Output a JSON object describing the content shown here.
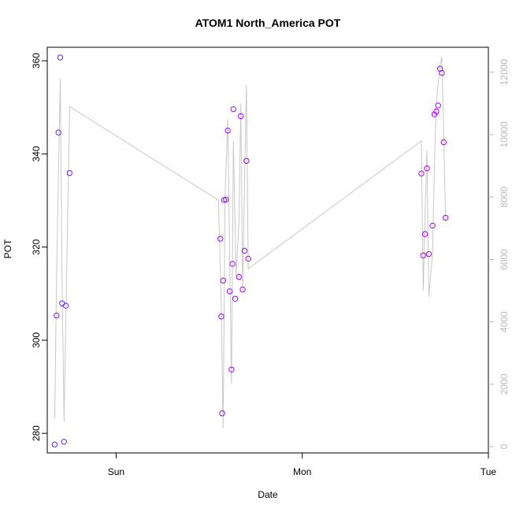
{
  "chart_data": {
    "type": "scatter",
    "title": "ATOM1 North_America POT",
    "xlabel": "Date",
    "ylabel": "POT",
    "x_ticks": [
      "Sun",
      "Mon",
      "Tue"
    ],
    "xlim": [
      -0.37,
      2.0
    ],
    "ylim": [
      275.8,
      362.9
    ],
    "y_ticks": [
      280,
      300,
      320,
      340,
      360
    ],
    "secondary_axis": {
      "ticks": [
        0,
        2000,
        4000,
        6000,
        8000,
        10000,
        12000
      ],
      "ylim": [
        -200,
        12800
      ],
      "color": "#b8b8b8"
    },
    "grid": false,
    "series": [
      {
        "kind": "points",
        "colors": [
          "#6a22ee",
          "#b100ff"
        ],
        "points": [
          {
            "x": -0.33,
            "y": 277.6
          },
          {
            "x": -0.32,
            "y": 305.3
          },
          {
            "x": -0.31,
            "y": 344.6
          },
          {
            "x": -0.3,
            "y": 360.7
          },
          {
            "x": -0.29,
            "y": 307.9
          },
          {
            "x": -0.28,
            "y": 278.2
          },
          {
            "x": -0.27,
            "y": 307.4
          },
          {
            "x": -0.25,
            "y": 335.9
          },
          {
            "x": 0.56,
            "y": 321.8
          },
          {
            "x": 0.565,
            "y": 305.1
          },
          {
            "x": 0.57,
            "y": 284.3
          },
          {
            "x": 0.575,
            "y": 312.8
          },
          {
            "x": 0.58,
            "y": 330.1
          },
          {
            "x": 0.59,
            "y": 330.2
          },
          {
            "x": 0.6,
            "y": 345.0
          },
          {
            "x": 0.61,
            "y": 310.5
          },
          {
            "x": 0.62,
            "y": 293.7
          },
          {
            "x": 0.625,
            "y": 316.4
          },
          {
            "x": 0.63,
            "y": 349.6
          },
          {
            "x": 0.64,
            "y": 308.9
          },
          {
            "x": 0.66,
            "y": 313.6
          },
          {
            "x": 0.67,
            "y": 348.1
          },
          {
            "x": 0.68,
            "y": 310.9
          },
          {
            "x": 0.69,
            "y": 319.2
          },
          {
            "x": 0.7,
            "y": 338.5
          },
          {
            "x": 0.71,
            "y": 317.5
          },
          {
            "x": 1.64,
            "y": 335.8
          },
          {
            "x": 1.65,
            "y": 318.2
          },
          {
            "x": 1.66,
            "y": 322.8
          },
          {
            "x": 1.67,
            "y": 336.9
          },
          {
            "x": 1.68,
            "y": 318.5
          },
          {
            "x": 1.7,
            "y": 324.6
          },
          {
            "x": 1.71,
            "y": 348.5
          },
          {
            "x": 1.72,
            "y": 349.1
          },
          {
            "x": 1.73,
            "y": 350.4
          },
          {
            "x": 1.74,
            "y": 358.3
          },
          {
            "x": 1.75,
            "y": 357.4
          },
          {
            "x": 1.76,
            "y": 342.5
          },
          {
            "x": 1.77,
            "y": 326.3
          }
        ]
      },
      {
        "kind": "line",
        "axis": "secondary",
        "color": "#c8c8c8",
        "points": [
          {
            "x": -0.33,
            "y": 900
          },
          {
            "x": -0.32,
            "y": 5500
          },
          {
            "x": -0.3,
            "y": 11800
          },
          {
            "x": -0.29,
            "y": 5200
          },
          {
            "x": -0.28,
            "y": 800
          },
          {
            "x": -0.25,
            "y": 10900
          },
          {
            "x": 0.55,
            "y": 7900
          },
          {
            "x": 0.565,
            "y": 4500
          },
          {
            "x": 0.575,
            "y": 600
          },
          {
            "x": 0.585,
            "y": 8000
          },
          {
            "x": 0.6,
            "y": 10500
          },
          {
            "x": 0.61,
            "y": 6000
          },
          {
            "x": 0.62,
            "y": 2000
          },
          {
            "x": 0.63,
            "y": 9800
          },
          {
            "x": 0.645,
            "y": 5500
          },
          {
            "x": 0.66,
            "y": 7200
          },
          {
            "x": 0.67,
            "y": 11000
          },
          {
            "x": 0.68,
            "y": 5000
          },
          {
            "x": 0.69,
            "y": 8500
          },
          {
            "x": 0.7,
            "y": 11600
          },
          {
            "x": 0.71,
            "y": 5700
          },
          {
            "x": 1.64,
            "y": 9800
          },
          {
            "x": 1.65,
            "y": 5000
          },
          {
            "x": 1.66,
            "y": 7500
          },
          {
            "x": 1.67,
            "y": 9500
          },
          {
            "x": 1.68,
            "y": 4800
          },
          {
            "x": 1.7,
            "y": 6200
          },
          {
            "x": 1.71,
            "y": 9000
          },
          {
            "x": 1.72,
            "y": 11000
          },
          {
            "x": 1.74,
            "y": 12200
          },
          {
            "x": 1.75,
            "y": 12500
          },
          {
            "x": 1.76,
            "y": 10000
          },
          {
            "x": 1.77,
            "y": 7200
          }
        ]
      }
    ]
  }
}
